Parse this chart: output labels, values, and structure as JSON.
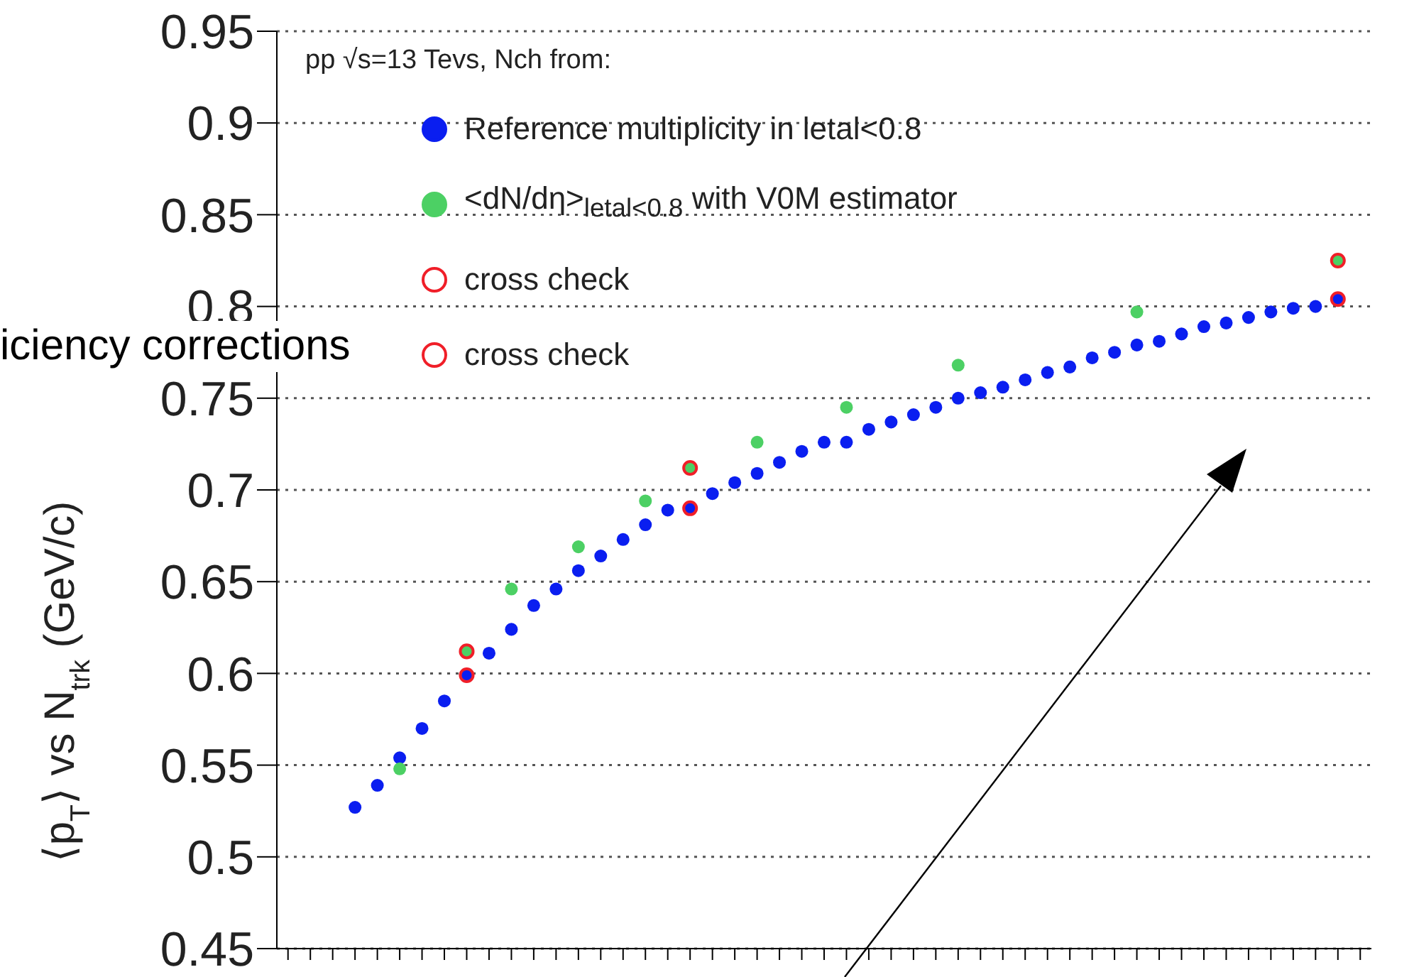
{
  "chart_data": {
    "type": "scatter",
    "ylabel": "⟨p$_{T}$⟩ vs N$_{trk}$ (GeV/c)",
    "legend_title": "pp √s=13 Tevs, Nch from:",
    "legend": "top left",
    "grid": "y",
    "marker": "circle",
    "tick_labels": "y",
    "annotations": [
      "iciency corrections"
    ],
    "ylim": [
      0.45,
      0.95
    ],
    "yticks": [
      0.45,
      0.5,
      0.55,
      0.6,
      0.65,
      0.7,
      0.75,
      0.8,
      0.85,
      0.9,
      0.95
    ],
    "categories": [
      null,
      null,
      null,
      null,
      null,
      null,
      null,
      null,
      null,
      null,
      null,
      null,
      null,
      null,
      null,
      null,
      null,
      null,
      null,
      null,
      null,
      null,
      null,
      null,
      null,
      null,
      null,
      null,
      null,
      null,
      null,
      null,
      null,
      null,
      null,
      null,
      null,
      null,
      null,
      null,
      null,
      null,
      null,
      null,
      null,
      null,
      null,
      null,
      null
    ],
    "series": [
      {
        "name": "Reference multiplicity in letal<0.8",
        "color": "#0a1ef0",
        "values": [
          null,
          null,
          null,
          0.527,
          0.539,
          0.554,
          0.57,
          0.585,
          0.599,
          0.611,
          0.624,
          0.637,
          0.646,
          0.656,
          0.664,
          0.673,
          0.681,
          0.689,
          0.69,
          0.698,
          0.704,
          0.709,
          0.715,
          0.721,
          0.726,
          0.726,
          0.733,
          0.737,
          0.741,
          0.745,
          0.75,
          0.753,
          0.756,
          0.76,
          0.764,
          0.767,
          0.772,
          0.775,
          0.779,
          0.781,
          0.785,
          0.789,
          0.791,
          0.794,
          0.797,
          0.799,
          0.8,
          0.804,
          null
        ]
      },
      {
        "name": "<dN/dη>$_{letal<0.8}$ with V0M estimator",
        "color": "#4cd064",
        "values": [
          null,
          null,
          null,
          null,
          null,
          0.548,
          null,
          null,
          0.612,
          null,
          0.646,
          null,
          null,
          0.669,
          null,
          null,
          0.694,
          null,
          0.712,
          null,
          null,
          0.726,
          null,
          null,
          null,
          0.745,
          null,
          null,
          null,
          null,
          0.768,
          null,
          null,
          null,
          null,
          null,
          null,
          null,
          0.797,
          null,
          null,
          null,
          null,
          null,
          null,
          null,
          null,
          0.825,
          null
        ]
      },
      {
        "name": "cross check",
        "color": "#f01e28",
        "values": [
          null,
          null,
          null,
          null,
          null,
          null,
          null,
          null,
          0.612,
          null,
          null,
          null,
          null,
          null,
          null,
          null,
          null,
          null,
          0.712,
          null,
          null,
          null,
          null,
          null,
          null,
          null,
          null,
          null,
          null,
          null,
          null,
          null,
          null,
          null,
          null,
          null,
          null,
          null,
          null,
          null,
          null,
          null,
          null,
          null,
          null,
          null,
          null,
          0.825,
          null
        ]
      },
      {
        "name": "cross check",
        "color": "#f01e28",
        "values": [
          null,
          null,
          null,
          null,
          null,
          null,
          null,
          null,
          0.599,
          null,
          null,
          null,
          null,
          null,
          null,
          null,
          null,
          null,
          0.69,
          null,
          null,
          null,
          null,
          null,
          null,
          null,
          null,
          null,
          null,
          null,
          null,
          null,
          null,
          null,
          null,
          null,
          null,
          null,
          null,
          null,
          null,
          null,
          null,
          null,
          null,
          null,
          null,
          0.804,
          null
        ]
      }
    ]
  }
}
